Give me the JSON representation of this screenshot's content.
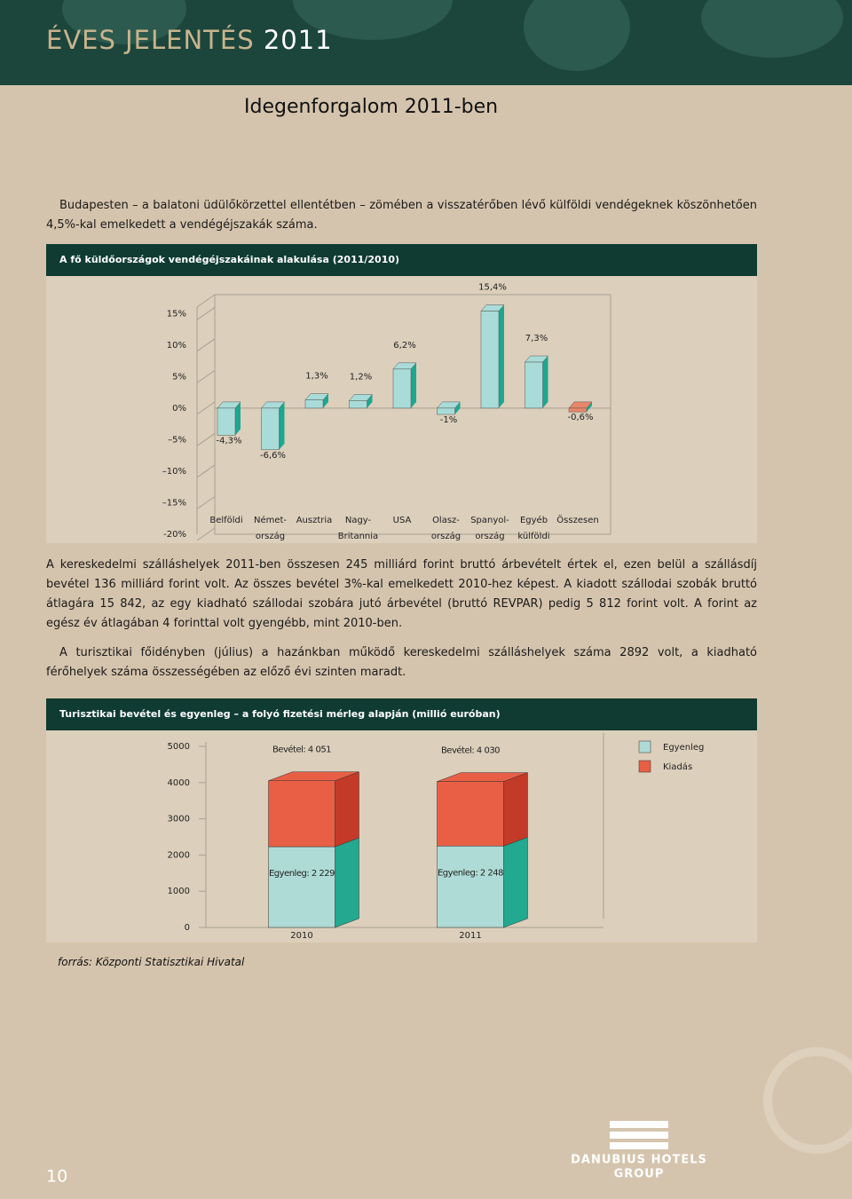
{
  "header": {
    "title": "ÉVES JELENTÉS",
    "year": "2011"
  },
  "section_title": "Idegenforgalom 2011-ben",
  "paragraphs": [
    "Budapesten – a balatoni üdülőkörzettel ellentétben – zömében a visszatérőben lévő külföldi vendégeknek köszönhetően 4,5%-kal emelkedett a vendégéjszakák száma.",
    "A kereskedelmi szálláshelyek 2011-ben összesen 245 milliárd forint bruttó árbevételt értek el, ezen belül a szállásdíj bevétel 136 milliárd forint volt. Az összes bevétel 3%-kal emelkedett 2010-hez képest. A kiadott szállodai szobák bruttó átlagára 15 842, az egy kiadható szállodai szobára jutó árbevétel (bruttó REVPAR) pedig 5 812 forint volt. A forint az egész év átlagában 4 forinttal volt gyengébb, mint 2010-ben.",
    "A turisztikai főidényben (július) a hazánkban működő kereskedelmi szálláshelyek száma 2892 volt, a kiadható férőhelyek száma összességében az előző évi szinten maradt."
  ],
  "chart_data": [
    {
      "type": "bar",
      "title": "A fő küldőországok vendégéjszakáinak alakulása (2011/2010)",
      "categories": [
        [
          "Belföldi"
        ],
        [
          "Német-",
          "ország"
        ],
        [
          "Ausztria"
        ],
        [
          "Nagy-",
          "Britannia"
        ],
        [
          "USA"
        ],
        [
          "Olasz-",
          "ország"
        ],
        [
          "Spanyol-",
          "ország"
        ],
        [
          "Egyéb",
          "külföldi"
        ],
        [
          "Összesen"
        ]
      ],
      "values": [
        -4.3,
        -6.6,
        1.3,
        1.2,
        6.2,
        -1,
        15.4,
        7.3,
        -0.6
      ],
      "value_labels": [
        "-4,3%",
        "-6,6%",
        "1,3%",
        "1,2%",
        "6,2%",
        "-1%",
        "15,4%",
        "7,3%",
        "-0,6%"
      ],
      "colors": [
        "#a9dcd8",
        "#a9dcd8",
        "#a9dcd8",
        "#a9dcd8",
        "#a9dcd8",
        "#a9dcd8",
        "#a9dcd8",
        "#a9dcd8",
        "#e8866a"
      ],
      "side_color": "#1fa68f",
      "ylim": [
        -20,
        18
      ],
      "yticks": [
        {
          "value": 15,
          "label": "15%"
        },
        {
          "value": 10,
          "label": "10%"
        },
        {
          "value": 5,
          "label": "5%"
        },
        {
          "value": 0,
          "label": "0%"
        },
        {
          "value": -5,
          "label": "–5%"
        },
        {
          "value": -10,
          "label": "–10%"
        },
        {
          "value": -15,
          "label": "–15%"
        },
        {
          "value": -20,
          "label": "-20%"
        }
      ]
    },
    {
      "type": "stacked_bar",
      "title": "Turisztikai bevétel és egyenleg – a folyó fizetési mérleg alapján (millió euróban)",
      "categories": [
        "2010",
        "2011"
      ],
      "series": [
        {
          "name": "Egyenleg",
          "color": "#aedbd6",
          "side_color": "#22a98f",
          "values": [
            2229,
            2248
          ],
          "value_labels": [
            "Egyenleg: 2 229",
            "Egyenleg: 2 248"
          ]
        },
        {
          "name": "Kiadás",
          "color": "#e85f45",
          "side_color": "#c43a28",
          "values": [
            1822,
            1782
          ]
        }
      ],
      "totals": [
        4051,
        4030
      ],
      "total_labels": [
        "Bevétel: 4 051",
        "Bevétel: 4 030"
      ],
      "ylim": [
        0,
        5000
      ],
      "yticks": [
        0,
        1000,
        2000,
        3000,
        4000,
        5000
      ],
      "legend": "right"
    }
  ],
  "source": "forrás: Központi Statisztikai Hivatal",
  "footer": {
    "page_number": "10",
    "logo": [
      "DANUBIUS HOTELS",
      "GROUP"
    ]
  }
}
